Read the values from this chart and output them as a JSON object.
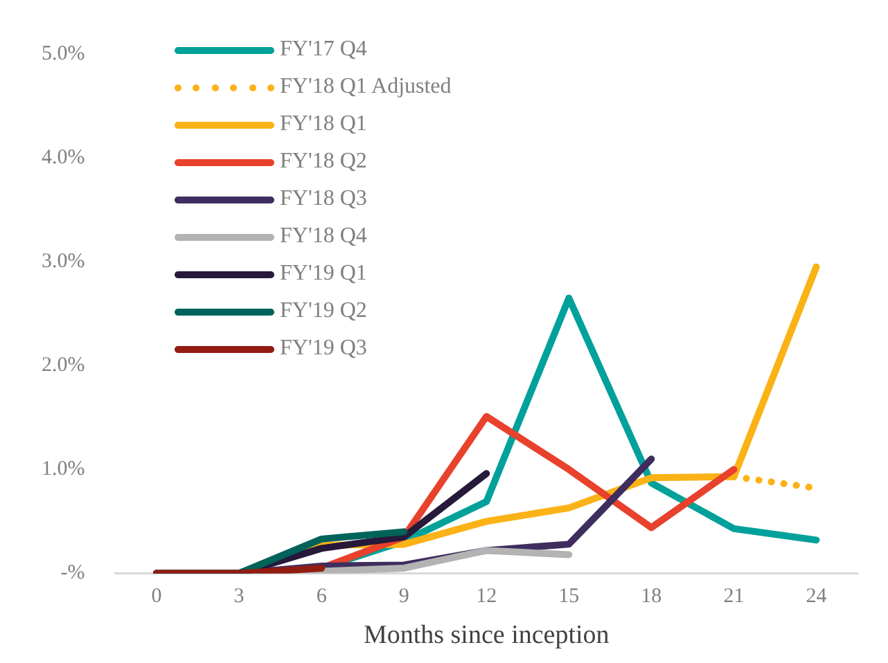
{
  "chart_data": {
    "type": "line",
    "xlabel": "Months since inception",
    "categories": [
      "0",
      "3",
      "6",
      "9",
      "12",
      "15",
      "18",
      "21",
      "24"
    ],
    "series": [
      {
        "name": "FY'17 Q4",
        "color": "#00a19a",
        "values": [
          0,
          0,
          0.05,
          0.31,
          0.69,
          2.65,
          0.87,
          0.43,
          0.32
        ]
      },
      {
        "name": "FY'18 Q1 Adjusted",
        "color": "#fbb216",
        "line_style": "dotted",
        "values": [
          null,
          null,
          null,
          null,
          null,
          null,
          null,
          0.93,
          0.82
        ]
      },
      {
        "name": "FY'18 Q1",
        "color": "#fbb216",
        "values": [
          0,
          0,
          0.27,
          0.28,
          0.5,
          0.63,
          0.92,
          0.93,
          2.95
        ]
      },
      {
        "name": "FY'18 Q2",
        "color": "#e8412c",
        "values": [
          0,
          0,
          0.05,
          0.35,
          1.51,
          1.0,
          0.44,
          1.0,
          null
        ]
      },
      {
        "name": "FY'18 Q3",
        "color": "#3f2d5e",
        "values": [
          0,
          0,
          0.07,
          0.08,
          0.22,
          0.28,
          1.1,
          null,
          null
        ]
      },
      {
        "name": "FY'18 Q4",
        "color": "#b3b3b3",
        "values": [
          0,
          0,
          0.02,
          0.05,
          0.22,
          0.18,
          null,
          null,
          null
        ]
      },
      {
        "name": "FY'19 Q1",
        "color": "#26193a",
        "values": [
          0,
          0,
          0.24,
          0.35,
          0.96,
          null,
          null,
          null,
          null
        ]
      },
      {
        "name": "FY'19 Q2",
        "color": "#00635a",
        "values": [
          0,
          0,
          0.33,
          0.4,
          null,
          null,
          null,
          null,
          null
        ]
      },
      {
        "name": "FY'19 Q3",
        "color": "#921c12",
        "values": [
          0,
          0,
          0.05,
          null,
          null,
          null,
          null,
          null,
          null
        ]
      }
    ],
    "ylim": [
      0,
      5
    ],
    "yticks": [
      {
        "value": 0,
        "label": "-%"
      },
      {
        "value": 1,
        "label": "1.0%"
      },
      {
        "value": 2,
        "label": "2.0%"
      },
      {
        "value": 3,
        "label": "3.0%"
      },
      {
        "value": 4,
        "label": "4.0%"
      },
      {
        "value": 5,
        "label": "5.0%"
      }
    ],
    "grid": false,
    "legend": "top left",
    "marker": "none",
    "line_style": "solid"
  }
}
